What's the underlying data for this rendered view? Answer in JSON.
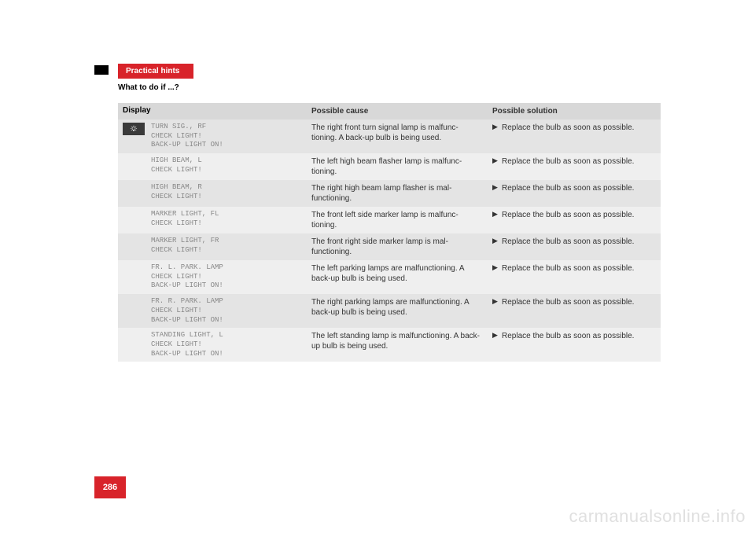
{
  "header": {
    "tab_label": "Practical hints",
    "tab_bg": "#d8232a",
    "section_title": "What to do if ...?"
  },
  "table": {
    "headers": {
      "display": "Display",
      "cause": "Possible cause",
      "solution": "Possible solution"
    },
    "header_bg": "#d8d8d8",
    "row_even_bg": "#e4e4e4",
    "row_odd_bg": "#efefef",
    "icon_cell_bg": "#3a3a3a",
    "display_text_color": "#888888",
    "rows": [
      {
        "display": "TURN SIG., RF\nCHECK LIGHT!\nBACK-UP LIGHT ON!",
        "cause": "The right front turn signal lamp is malfunc-tioning. A back-up bulb is being used.",
        "solution": "Replace the bulb as soon as possible."
      },
      {
        "display": "HIGH BEAM, L\nCHECK LIGHT!",
        "cause": "The left high beam flasher lamp is malfunc-tioning.",
        "solution": "Replace the bulb as soon as possible."
      },
      {
        "display": "HIGH BEAM, R\nCHECK LIGHT!",
        "cause": "The right high beam lamp flasher is mal-functioning.",
        "solution": "Replace the bulb as soon as possible."
      },
      {
        "display": "MARKER LIGHT, FL\nCHECK LIGHT!",
        "cause": "The front left side marker lamp is malfunc-tioning.",
        "solution": "Replace the bulb as soon as possible."
      },
      {
        "display": "MARKER LIGHT, FR\nCHECK LIGHT!",
        "cause": "The front right side marker lamp is mal-functioning.",
        "solution": "Replace the bulb as soon as possible."
      },
      {
        "display": "FR. L. PARK. LAMP\nCHECK LIGHT!\nBACK-UP LIGHT ON!",
        "cause": "The left parking lamps are malfunctioning. A back-up bulb is being used.",
        "solution": "Replace the bulb as soon as possible."
      },
      {
        "display": "FR. R. PARK. LAMP\nCHECK LIGHT!\nBACK-UP LIGHT ON!",
        "cause": "The right parking lamps are malfunctioning. A back-up bulb is being used.",
        "solution": "Replace the bulb as soon as possible."
      },
      {
        "display": "STANDING LIGHT, L\nCHECK LIGHT!\nBACK-UP LIGHT ON!",
        "cause": "The left standing lamp is malfunctioning. A back-up bulb is being used.",
        "solution": "Replace the bulb as soon as possible."
      }
    ]
  },
  "page_number": {
    "value": "286",
    "bg": "#d8232a"
  },
  "watermark": "carmanualsonline.info",
  "solution_arrow": "▶"
}
